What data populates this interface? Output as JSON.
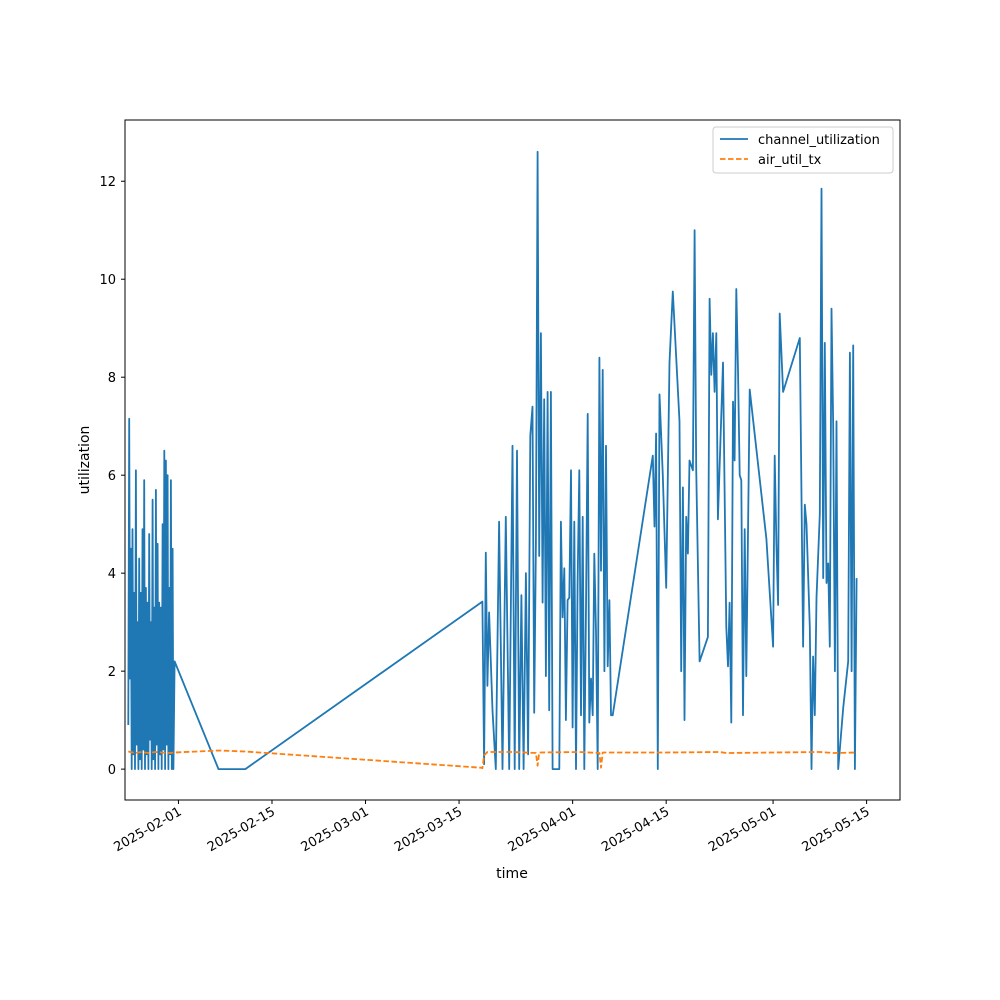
{
  "chart_data": {
    "type": "line",
    "title": "",
    "xlabel": "time",
    "ylabel": "utilization",
    "xlim": [
      "2025-01-24",
      "2025-05-20"
    ],
    "ylim": [
      -0.63,
      13.25
    ],
    "grid": false,
    "legend_position": "top-right",
    "x_ticks": [
      {
        "date": "2025-02-01",
        "label": "2025-02-01"
      },
      {
        "date": "2025-02-15",
        "label": "2025-02-15"
      },
      {
        "date": "2025-03-01",
        "label": "2025-03-01"
      },
      {
        "date": "2025-03-15",
        "label": "2025-03-15"
      },
      {
        "date": "2025-04-01",
        "label": "2025-04-01"
      },
      {
        "date": "2025-04-15",
        "label": "2025-04-15"
      },
      {
        "date": "2025-05-01",
        "label": "2025-05-01"
      },
      {
        "date": "2025-05-15",
        "label": "2025-05-15"
      }
    ],
    "y_ticks": [
      {
        "value": 0,
        "label": "0"
      },
      {
        "value": 2,
        "label": "2"
      },
      {
        "value": 4,
        "label": "4"
      },
      {
        "value": 6,
        "label": "6"
      },
      {
        "value": 8,
        "label": "8"
      },
      {
        "value": 10,
        "label": "10"
      },
      {
        "value": 12,
        "label": "12"
      }
    ],
    "series": [
      {
        "name": "channel_utilization",
        "color": "#1f77b4",
        "dash": "solid",
        "points": [
          [
            "2025-01-24 12:00",
            0.9
          ],
          [
            "2025-01-24 15:00",
            7.15
          ],
          [
            "2025-01-24 18:00",
            1.85
          ],
          [
            "2025-01-24 21:00",
            4.5
          ],
          [
            "2025-01-25 00:00",
            0.0
          ],
          [
            "2025-01-25 03:00",
            4.9
          ],
          [
            "2025-01-25 06:00",
            0.3
          ],
          [
            "2025-01-25 09:00",
            3.6
          ],
          [
            "2025-01-25 12:00",
            0.0
          ],
          [
            "2025-01-25 15:00",
            6.1
          ],
          [
            "2025-01-25 18:00",
            0.5
          ],
          [
            "2025-01-25 21:00",
            3.0
          ],
          [
            "2025-01-26 00:00",
            0.0
          ],
          [
            "2025-01-26 03:00",
            4.3
          ],
          [
            "2025-01-26 06:00",
            0.2
          ],
          [
            "2025-01-26 09:00",
            3.6
          ],
          [
            "2025-01-26 12:00",
            0.0
          ],
          [
            "2025-01-26 15:00",
            4.9
          ],
          [
            "2025-01-26 18:00",
            0.4
          ],
          [
            "2025-01-26 21:00",
            5.9
          ],
          [
            "2025-01-27 00:00",
            0.0
          ],
          [
            "2025-01-27 03:00",
            3.7
          ],
          [
            "2025-01-27 06:00",
            0.3
          ],
          [
            "2025-01-27 09:00",
            3.4
          ],
          [
            "2025-01-27 12:00",
            0.0
          ],
          [
            "2025-01-27 15:00",
            4.8
          ],
          [
            "2025-01-27 18:00",
            0.6
          ],
          [
            "2025-01-27 21:00",
            3.0
          ],
          [
            "2025-01-28 00:00",
            0.0
          ],
          [
            "2025-01-28 03:00",
            5.5
          ],
          [
            "2025-01-28 06:00",
            0.2
          ],
          [
            "2025-01-28 09:00",
            3.3
          ],
          [
            "2025-01-28 12:00",
            0.0
          ],
          [
            "2025-01-28 15:00",
            5.7
          ],
          [
            "2025-01-28 18:00",
            0.5
          ],
          [
            "2025-01-28 21:00",
            4.6
          ],
          [
            "2025-01-29 00:00",
            0.0
          ],
          [
            "2025-01-29 03:00",
            3.4
          ],
          [
            "2025-01-29 06:00",
            0.3
          ],
          [
            "2025-01-29 09:00",
            3.3
          ],
          [
            "2025-01-29 12:00",
            0.0
          ],
          [
            "2025-01-29 15:00",
            5.0
          ],
          [
            "2025-01-29 18:00",
            0.4
          ],
          [
            "2025-01-29 21:00",
            6.5
          ],
          [
            "2025-01-30 00:00",
            0.0
          ],
          [
            "2025-01-30 03:00",
            6.3
          ],
          [
            "2025-01-30 06:00",
            0.5
          ],
          [
            "2025-01-30 09:00",
            6.0
          ],
          [
            "2025-01-30 12:00",
            0.0
          ],
          [
            "2025-01-30 15:00",
            3.7
          ],
          [
            "2025-01-30 18:00",
            0.3
          ],
          [
            "2025-01-30 21:00",
            5.9
          ],
          [
            "2025-01-31 00:00",
            0.0
          ],
          [
            "2025-01-31 03:00",
            4.5
          ],
          [
            "2025-01-31 06:00",
            0.0
          ],
          [
            "2025-01-31 10:00",
            2.2
          ],
          [
            "2025-02-07 00:00",
            0.0
          ],
          [
            "2025-02-11 00:00",
            0.0
          ],
          [
            "2025-03-18 12:00",
            3.42
          ],
          [
            "2025-03-18 18:00",
            0.1
          ],
          [
            "2025-03-19 00:00",
            4.42
          ],
          [
            "2025-03-19 06:00",
            1.7
          ],
          [
            "2025-03-19 12:00",
            3.2
          ],
          [
            "2025-03-20 00:00",
            1.2
          ],
          [
            "2025-03-20 12:00",
            0.0
          ],
          [
            "2025-03-21 00:00",
            5.05
          ],
          [
            "2025-03-21 12:00",
            0.0
          ],
          [
            "2025-03-22 00:00",
            5.15
          ],
          [
            "2025-03-22 12:00",
            0.0
          ],
          [
            "2025-03-23 00:00",
            6.6
          ],
          [
            "2025-03-23 08:00",
            0.0
          ],
          [
            "2025-03-23 16:00",
            6.5
          ],
          [
            "2025-03-24 00:00",
            0.0
          ],
          [
            "2025-03-24 08:00",
            3.55
          ],
          [
            "2025-03-24 16:00",
            0.0
          ],
          [
            "2025-03-25 00:00",
            4.0
          ],
          [
            "2025-03-25 08:00",
            0.3
          ],
          [
            "2025-03-25 16:00",
            6.8
          ],
          [
            "2025-03-26 00:00",
            7.4
          ],
          [
            "2025-03-26 06:00",
            1.15
          ],
          [
            "2025-03-26 12:00",
            4.6
          ],
          [
            "2025-03-26 18:00",
            12.6
          ],
          [
            "2025-03-27 00:00",
            4.35
          ],
          [
            "2025-03-27 06:00",
            8.9
          ],
          [
            "2025-03-27 12:00",
            3.4
          ],
          [
            "2025-03-27 18:00",
            7.55
          ],
          [
            "2025-03-28 00:00",
            1.9
          ],
          [
            "2025-03-28 06:00",
            7.7
          ],
          [
            "2025-03-28 12:00",
            1.2
          ],
          [
            "2025-03-28 18:00",
            7.7
          ],
          [
            "2025-03-29 00:00",
            0.0
          ],
          [
            "2025-03-30 00:00",
            0.0
          ],
          [
            "2025-03-30 06:00",
            5.05
          ],
          [
            "2025-03-30 12:00",
            3.1
          ],
          [
            "2025-03-30 18:00",
            4.1
          ],
          [
            "2025-03-31 00:00",
            1.0
          ],
          [
            "2025-03-31 06:00",
            3.45
          ],
          [
            "2025-03-31 12:00",
            3.5
          ],
          [
            "2025-03-31 18:00",
            6.1
          ],
          [
            "2025-04-01 00:00",
            0.85
          ],
          [
            "2025-04-01 06:00",
            5.05
          ],
          [
            "2025-04-01 12:00",
            0.0
          ],
          [
            "2025-04-01 18:00",
            3.8
          ],
          [
            "2025-04-02 00:00",
            6.1
          ],
          [
            "2025-04-02 06:00",
            1.1
          ],
          [
            "2025-04-02 12:00",
            5.15
          ],
          [
            "2025-04-02 18:00",
            0.0
          ],
          [
            "2025-04-03 00:00",
            3.3
          ],
          [
            "2025-04-03 06:00",
            7.25
          ],
          [
            "2025-04-03 12:00",
            0.95
          ],
          [
            "2025-04-03 18:00",
            1.85
          ],
          [
            "2025-04-04 00:00",
            1.1
          ],
          [
            "2025-04-04 06:00",
            4.4
          ],
          [
            "2025-04-04 12:00",
            2.8
          ],
          [
            "2025-04-04 18:00",
            0.0
          ],
          [
            "2025-04-05 00:00",
            8.4
          ],
          [
            "2025-04-05 06:00",
            4.05
          ],
          [
            "2025-04-05 12:00",
            8.15
          ],
          [
            "2025-04-05 18:00",
            2.0
          ],
          [
            "2025-04-06 00:00",
            6.6
          ],
          [
            "2025-04-06 06:00",
            2.1
          ],
          [
            "2025-04-06 12:00",
            3.45
          ],
          [
            "2025-04-06 18:00",
            1.1
          ],
          [
            "2025-04-07 00:00",
            1.1
          ],
          [
            "2025-04-13 00:00",
            6.4
          ],
          [
            "2025-04-13 06:00",
            4.95
          ],
          [
            "2025-04-13 12:00",
            6.85
          ],
          [
            "2025-04-13 18:00",
            0.0
          ],
          [
            "2025-04-14 00:00",
            7.65
          ],
          [
            "2025-04-14 12:00",
            6.0
          ],
          [
            "2025-04-15 00:00",
            3.7
          ],
          [
            "2025-04-15 12:00",
            8.3
          ],
          [
            "2025-04-16 00:00",
            9.75
          ],
          [
            "2025-04-17 00:00",
            7.1
          ],
          [
            "2025-04-17 06:00",
            2.0
          ],
          [
            "2025-04-17 12:00",
            5.75
          ],
          [
            "2025-04-17 18:00",
            1.0
          ],
          [
            "2025-04-18 00:00",
            5.15
          ],
          [
            "2025-04-18 06:00",
            4.4
          ],
          [
            "2025-04-18 12:00",
            6.3
          ],
          [
            "2025-04-19 00:00",
            6.1
          ],
          [
            "2025-04-19 06:00",
            11.0
          ],
          [
            "2025-04-19 12:00",
            6.15
          ],
          [
            "2025-04-20 00:00",
            2.2
          ],
          [
            "2025-04-21 06:00",
            2.7
          ],
          [
            "2025-04-21 12:00",
            9.6
          ],
          [
            "2025-04-21 18:00",
            8.05
          ],
          [
            "2025-04-22 00:00",
            8.9
          ],
          [
            "2025-04-22 06:00",
            7.7
          ],
          [
            "2025-04-22 12:00",
            8.9
          ],
          [
            "2025-04-22 18:00",
            5.1
          ],
          [
            "2025-04-23 12:00",
            8.3
          ],
          [
            "2025-04-24 00:00",
            2.9
          ],
          [
            "2025-04-24 06:00",
            2.1
          ],
          [
            "2025-04-24 12:00",
            3.4
          ],
          [
            "2025-04-24 18:00",
            0.95
          ],
          [
            "2025-04-25 00:00",
            7.5
          ],
          [
            "2025-04-25 06:00",
            6.3
          ],
          [
            "2025-04-25 12:00",
            9.8
          ],
          [
            "2025-04-25 18:00",
            8.15
          ],
          [
            "2025-04-26 00:00",
            6.0
          ],
          [
            "2025-04-26 06:00",
            5.9
          ],
          [
            "2025-04-26 12:00",
            1.1
          ],
          [
            "2025-04-26 18:00",
            4.9
          ],
          [
            "2025-04-27 00:00",
            1.9
          ],
          [
            "2025-04-27 12:00",
            7.75
          ],
          [
            "2025-04-30 00:00",
            4.7
          ],
          [
            "2025-05-01 00:00",
            2.5
          ],
          [
            "2025-05-01 06:00",
            6.4
          ],
          [
            "2025-05-01 12:00",
            4.6
          ],
          [
            "2025-05-01 18:00",
            3.35
          ],
          [
            "2025-05-02 00:00",
            9.3
          ],
          [
            "2025-05-02 12:00",
            7.7
          ],
          [
            "2025-05-05 00:00",
            8.8
          ],
          [
            "2025-05-05 12:00",
            2.5
          ],
          [
            "2025-05-05 18:00",
            5.4
          ],
          [
            "2025-05-06 00:00",
            5.0
          ],
          [
            "2025-05-06 12:00",
            2.9
          ],
          [
            "2025-05-06 18:00",
            0.0
          ],
          [
            "2025-05-07 00:00",
            2.3
          ],
          [
            "2025-05-07 06:00",
            1.1
          ],
          [
            "2025-05-07 12:00",
            3.5
          ],
          [
            "2025-05-08 00:00",
            5.2
          ],
          [
            "2025-05-08 06:00",
            11.85
          ],
          [
            "2025-05-08 12:00",
            3.9
          ],
          [
            "2025-05-08 18:00",
            8.7
          ],
          [
            "2025-05-09 00:00",
            3.8
          ],
          [
            "2025-05-09 06:00",
            4.2
          ],
          [
            "2025-05-09 12:00",
            2.5
          ],
          [
            "2025-05-09 18:00",
            9.4
          ],
          [
            "2025-05-10 00:00",
            7.0
          ],
          [
            "2025-05-10 06:00",
            2.0
          ],
          [
            "2025-05-10 12:00",
            7.1
          ],
          [
            "2025-05-10 18:00",
            0.0
          ],
          [
            "2025-05-11 12:00",
            1.25
          ],
          [
            "2025-05-12 06:00",
            2.2
          ],
          [
            "2025-05-12 12:00",
            8.5
          ],
          [
            "2025-05-12 18:00",
            2.0
          ],
          [
            "2025-05-13 00:00",
            8.65
          ],
          [
            "2025-05-13 06:00",
            0.0
          ],
          [
            "2025-05-13 12:00",
            3.9
          ]
        ]
      },
      {
        "name": "air_util_tx",
        "color": "#ff7f0e",
        "dash": "dashed",
        "points": [
          [
            "2025-01-24 12:00",
            0.36
          ],
          [
            "2025-01-25 12:00",
            0.33
          ],
          [
            "2025-01-26 12:00",
            0.35
          ],
          [
            "2025-01-27 12:00",
            0.33
          ],
          [
            "2025-01-28 12:00",
            0.35
          ],
          [
            "2025-01-29 12:00",
            0.34
          ],
          [
            "2025-01-30 12:00",
            0.33
          ],
          [
            "2025-01-31 10:00",
            0.34
          ],
          [
            "2025-02-07 00:00",
            0.38
          ],
          [
            "2025-02-11 00:00",
            0.36
          ],
          [
            "2025-03-18 06:00",
            0.03
          ],
          [
            "2025-03-18 12:00",
            0.02
          ],
          [
            "2025-03-18 18:00",
            0.28
          ],
          [
            "2025-03-19 06:00",
            0.35
          ],
          [
            "2025-03-23 00:00",
            0.35
          ],
          [
            "2025-03-26 12:00",
            0.33
          ],
          [
            "2025-03-26 18:00",
            0.07
          ],
          [
            "2025-03-27 00:00",
            0.34
          ],
          [
            "2025-04-02 00:00",
            0.35
          ],
          [
            "2025-04-05 00:00",
            0.33
          ],
          [
            "2025-04-05 06:00",
            0.03
          ],
          [
            "2025-04-05 12:00",
            0.34
          ],
          [
            "2025-04-15 00:00",
            0.34
          ],
          [
            "2025-04-23 00:00",
            0.35
          ],
          [
            "2025-04-24 00:00",
            0.33
          ],
          [
            "2025-05-01 00:00",
            0.34
          ],
          [
            "2025-05-08 00:00",
            0.35
          ],
          [
            "2025-05-10 00:00",
            0.33
          ],
          [
            "2025-05-13 12:00",
            0.34
          ]
        ]
      }
    ]
  }
}
